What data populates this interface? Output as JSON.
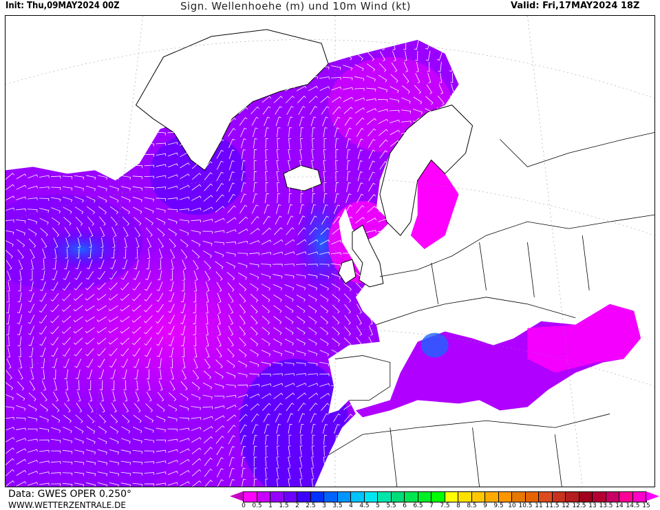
{
  "header": {
    "init": "Init: Thu,09MAY2024 00Z",
    "title": "Sign. Wellenhoehe (m) und 10m Wind (kt)",
    "valid": "Valid: Fri,17MAY2024 18Z"
  },
  "footer": {
    "data_source": "Data: GWES OPER 0.250°",
    "website": "WWW.WETTERZENTRALE.DE"
  },
  "legend": {
    "ticks": [
      "0",
      "0.5",
      "1",
      "1.5",
      "2",
      "2.5",
      "3",
      "3.5",
      "4",
      "4.5",
      "5",
      "5.5",
      "6",
      "6.5",
      "7",
      "7.5",
      "8",
      "8.5",
      "9",
      "9.5",
      "10",
      "10.5",
      "11",
      "11.5",
      "12",
      "12.5",
      "13",
      "13.5",
      "14",
      "14.5",
      "15"
    ],
    "colors": [
      "#ff00ff",
      "#c800ff",
      "#9600ff",
      "#6e00ff",
      "#3c00ff",
      "#0032ff",
      "#0064ff",
      "#0096ff",
      "#00c3ff",
      "#00e6f0",
      "#00e6aa",
      "#00dc78",
      "#00e650",
      "#00f028",
      "#00ff00",
      "#ffff00",
      "#ffe100",
      "#ffc800",
      "#ffaa00",
      "#ff9600",
      "#e67800",
      "#e66400",
      "#dc4b1e",
      "#c8321e",
      "#b41e1e",
      "#a0001e",
      "#b40032",
      "#c80064",
      "#ff0096",
      "#ff00c8"
    ],
    "under_color": "#c800c8",
    "over_color": "#ff00ff"
  },
  "map": {
    "land_color": "#ffffff",
    "border_color": "#000000",
    "wind_barb_color": "#ffffff"
  }
}
